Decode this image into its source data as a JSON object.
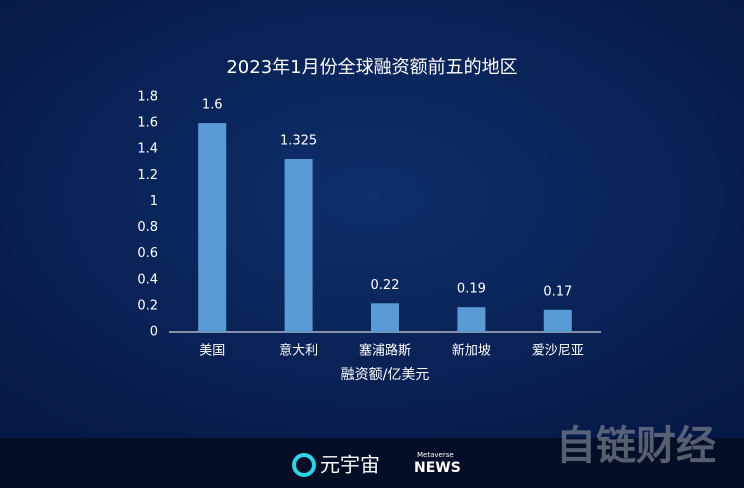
{
  "chart_data": {
    "type": "bar",
    "title": "2023年1月份全球融资额前五的地区",
    "x_label": "融资额/亿美元",
    "categories": [
      "美国",
      "意大利",
      "塞浦路斯",
      "新加坡",
      "爱沙尼亚"
    ],
    "values": [
      1.6,
      1.325,
      0.22,
      0.19,
      0.17
    ],
    "color": "#5b9bd5",
    "ylim": [
      0,
      1.8
    ],
    "yticks": [
      0,
      0.2,
      0.4,
      0.6,
      0.8,
      1,
      1.2,
      1.4,
      1.6,
      1.8
    ],
    "grid": false
  },
  "footer": {
    "brand": "元宇宙",
    "brand_sub": "Metaverse",
    "brand_news": "NEWS",
    "watermark": "自链财经"
  }
}
